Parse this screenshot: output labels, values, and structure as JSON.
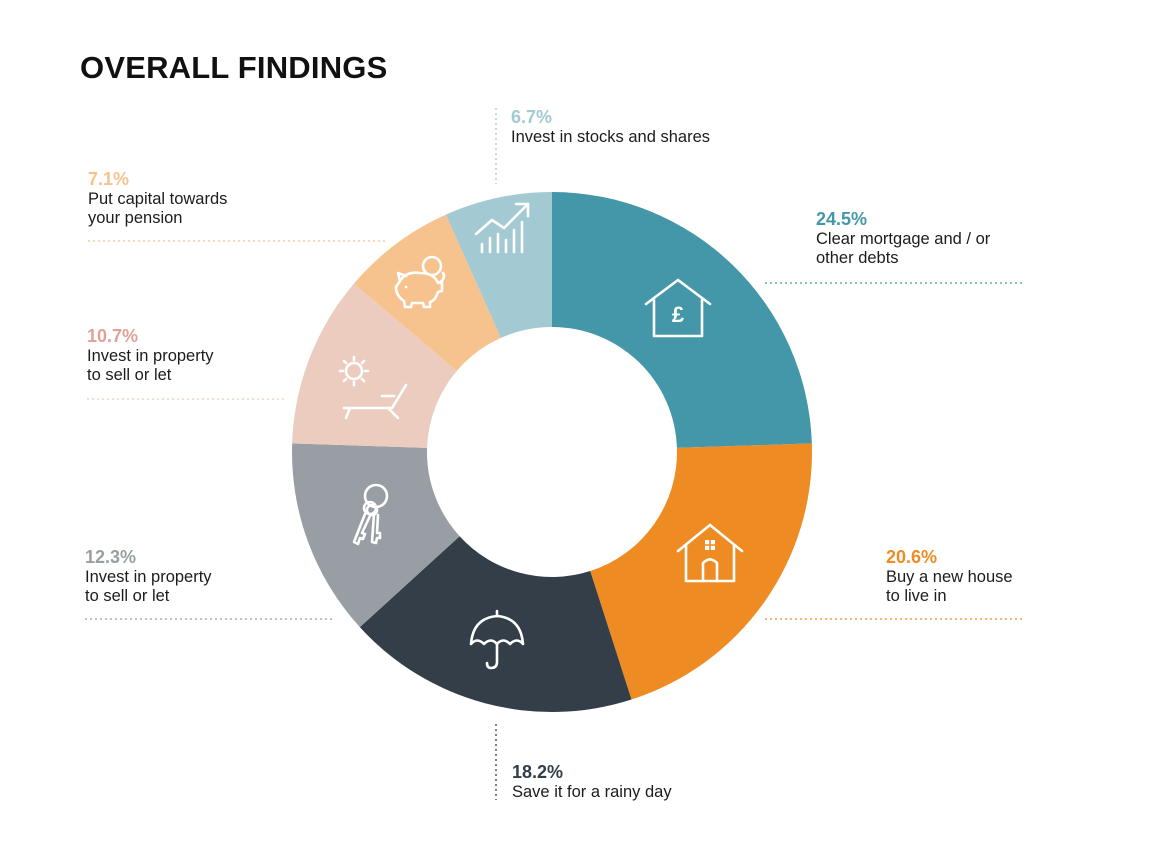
{
  "title": "OVERALL FINDINGS",
  "chart_data": {
    "type": "pie",
    "variant": "donut",
    "title": "OVERALL FINDINGS",
    "slices": [
      {
        "pct": "24.5%",
        "value": 24.5,
        "label": "Clear mortgage and / or\nother debts",
        "color": "#4397a9",
        "icon": "house-pound-icon"
      },
      {
        "pct": "20.6%",
        "value": 20.6,
        "label": "Buy a new house\nto live in",
        "color": "#ee8b23",
        "icon": "house-icon"
      },
      {
        "pct": "18.2%",
        "value": 18.2,
        "label": "Save it for a rainy day",
        "color": "#333e48",
        "icon": "umbrella-icon"
      },
      {
        "pct": "12.3%",
        "value": 12.3,
        "label": "Invest in property\nto sell or let",
        "color": "#989ea3",
        "icon": "keys-icon"
      },
      {
        "pct": "10.7%",
        "value": 10.7,
        "label": "Invest in property\nto sell or let",
        "color": "#ecccbe",
        "icon": "sun-lounger-icon"
      },
      {
        "pct": "7.1%",
        "value": 7.1,
        "label": "Put capital towards\nyour pension",
        "color": "#f6c38f",
        "icon": "piggy-bank-icon"
      },
      {
        "pct": "6.7%",
        "value": 6.7,
        "label": "Invest in stocks and shares",
        "color": "#a3cad3",
        "icon": "rising-chart-icon"
      }
    ],
    "label_colors": [
      "#4397a9",
      "#ee8b23",
      "#333e48",
      "#989ea3",
      "#e0a297",
      "#f6c38f",
      "#a3cad3"
    ]
  }
}
